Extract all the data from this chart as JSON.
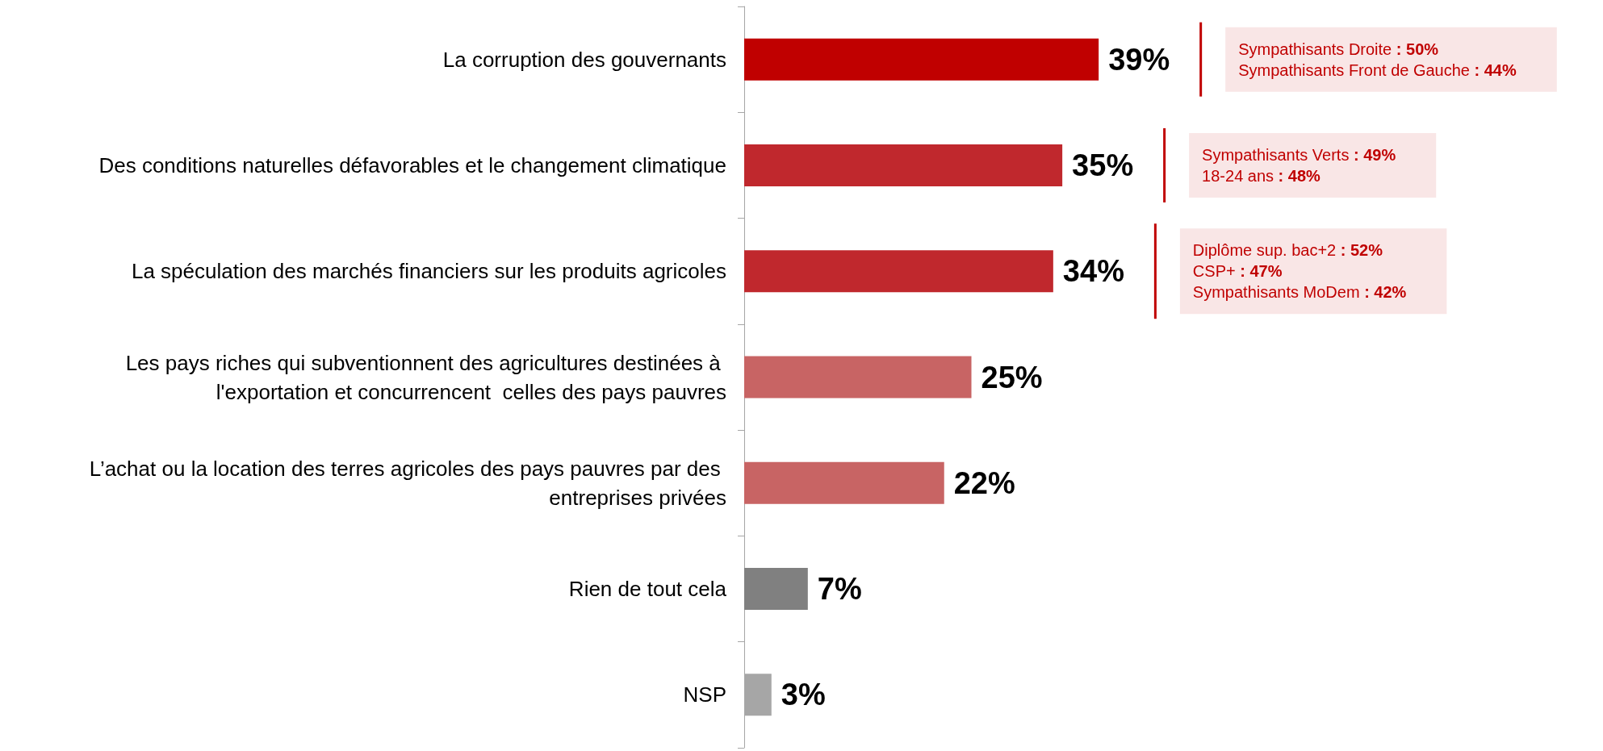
{
  "chart_data": {
    "type": "bar",
    "orientation": "horizontal",
    "grid": false,
    "value_labels": [
      "39%",
      "35%",
      "34%",
      "25%",
      "22%",
      "7%",
      "3%"
    ],
    "categories": [
      "La corruption des gouvernants",
      "Des conditions naturelles défavorables et le changement climatique",
      "La spéculation des marchés financiers sur les produits agricoles",
      "Les pays riches qui subventionnent des agricultures destinées à l'exportation et concurrencent  celles des pays pauvres",
      "L’achat ou la location des terres agricoles des pays pauvres par des entreprises privées",
      "Rien de tout cela",
      "NSP"
    ],
    "values": [
      39,
      35,
      34,
      25,
      22,
      7,
      3
    ],
    "colors": [
      "#c00000",
      "#c0282d",
      "#c0282d",
      "#c86464",
      "#c86464",
      "#808080",
      "#a6a6a6"
    ],
    "annotations": [
      "Sympathisants Droite : 50%\nSympathisants Front de Gauche : 44%",
      "Sympathisants Verts : 49%\n18-24 ans : 48%",
      "Diplôme sup. bac+2 : 52%\nCSP+ : 47%\nSympathisants MoDem : 42%"
    ]
  }
}
